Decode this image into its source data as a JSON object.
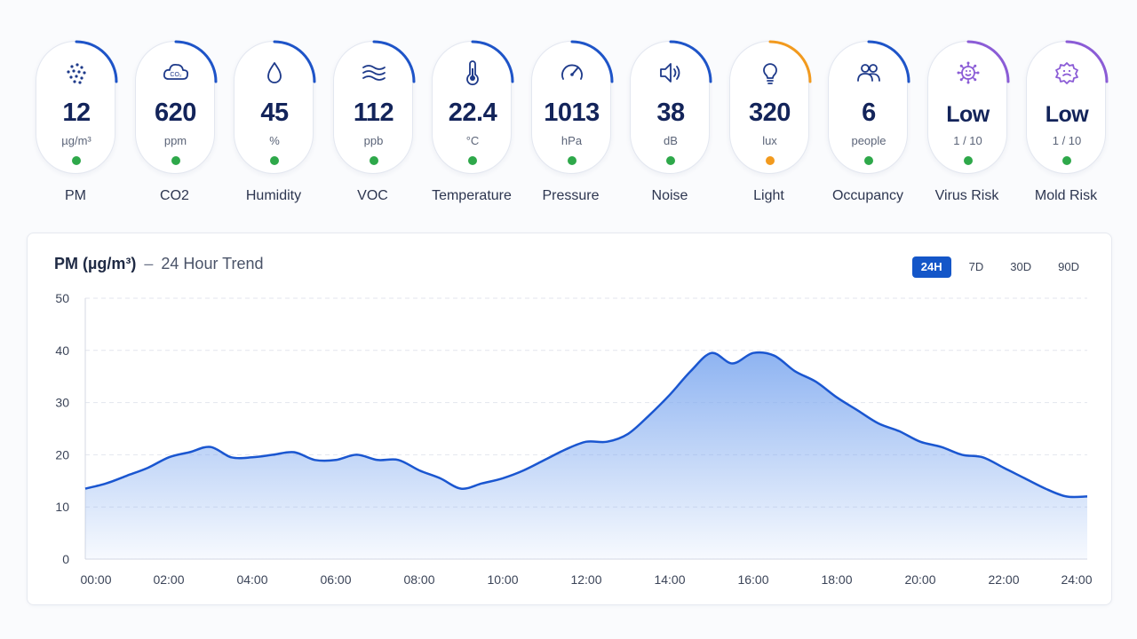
{
  "metrics": [
    {
      "key": "pm",
      "icon": "particles-icon",
      "value": "12",
      "unit": "µg/m³",
      "label": "PM",
      "status_color": "#2ea84a",
      "arc_color": "#1e54c8",
      "arc_fraction": 0.3
    },
    {
      "key": "co2",
      "icon": "co2-cloud-icon",
      "value": "620",
      "unit": "ppm",
      "label": "CO2",
      "status_color": "#2ea84a",
      "arc_color": "#1e54c8",
      "arc_fraction": 0.3
    },
    {
      "key": "humidity",
      "icon": "droplet-icon",
      "value": "45",
      "unit": "%",
      "label": "Humidity",
      "status_color": "#2ea84a",
      "arc_color": "#1e54c8",
      "arc_fraction": 0.25
    },
    {
      "key": "voc",
      "icon": "waves-icon",
      "value": "112",
      "unit": "ppb",
      "label": "VOC",
      "status_color": "#2ea84a",
      "arc_color": "#1e54c8",
      "arc_fraction": 0.28
    },
    {
      "key": "temperature",
      "icon": "thermometer-icon",
      "value": "22.4",
      "unit": "°C",
      "label": "Temperature",
      "status_color": "#2ea84a",
      "arc_color": "#1e54c8",
      "arc_fraction": 0.22
    },
    {
      "key": "pressure",
      "icon": "gauge-icon",
      "value": "1013",
      "unit": "hPa",
      "label": "Pressure",
      "status_color": "#2ea84a",
      "arc_color": "#1e54c8",
      "arc_fraction": 0.22
    },
    {
      "key": "noise",
      "icon": "speaker-icon",
      "value": "38",
      "unit": "dB",
      "label": "Noise",
      "status_color": "#2ea84a",
      "arc_color": "#1e54c8",
      "arc_fraction": 0.22
    },
    {
      "key": "light",
      "icon": "lightbulb-icon",
      "value": "320",
      "unit": "lux",
      "label": "Light",
      "status_color": "#f29a1e",
      "arc_color": "#f29a1e",
      "arc_fraction": 0.3
    },
    {
      "key": "occupancy",
      "icon": "people-icon",
      "value": "6",
      "unit": "people",
      "label": "Occupancy",
      "status_color": "#2ea84a",
      "arc_color": "#1e54c8",
      "arc_fraction": 0.22
    },
    {
      "key": "virus",
      "icon": "virus-icon",
      "value": "Low",
      "unit": "1 / 10",
      "label": "Virus Risk",
      "status_color": "#2ea84a",
      "arc_color": "#8b5cd6",
      "arc_fraction": 0.25
    },
    {
      "key": "mold",
      "icon": "mold-icon",
      "value": "Low",
      "unit": "1 / 10",
      "label": "Mold Risk",
      "status_color": "#2ea84a",
      "arc_color": "#8b5cd6",
      "arc_fraction": 0.25
    }
  ],
  "trend": {
    "title_metric": "PM (µg/m³)",
    "title_separator": "–",
    "title_period": "24 Hour Trend",
    "ranges": [
      "24H",
      "7D",
      "30D",
      "90D"
    ],
    "active_range": "24H",
    "line_color": "#1a56d0",
    "fill_color": "#7aa6ef"
  },
  "chart_data": {
    "type": "area",
    "title": "PM (µg/m³) – 24 Hour Trend",
    "xlabel": "",
    "ylabel": "",
    "ylim": [
      0,
      50
    ],
    "yticks": [
      0,
      10,
      20,
      30,
      40,
      50
    ],
    "xticks": [
      "00:00",
      "02:00",
      "04:00",
      "06:00",
      "08:00",
      "10:00",
      "12:00",
      "14:00",
      "16:00",
      "18:00",
      "20:00",
      "22:00",
      "24:00"
    ],
    "grid": true,
    "x_hours": [
      0,
      0.5,
      1,
      1.5,
      2,
      2.5,
      3,
      3.5,
      4,
      4.5,
      5,
      5.5,
      6,
      6.5,
      7,
      7.5,
      8,
      8.5,
      9,
      9.5,
      10,
      10.5,
      11,
      11.5,
      12,
      12.5,
      13,
      13.5,
      14,
      14.5,
      15,
      15.5,
      16,
      16.5,
      17,
      17.5,
      18,
      18.5,
      19,
      19.5,
      20,
      20.5,
      21,
      21.5,
      22,
      22.5,
      23,
      23.5,
      24
    ],
    "values": [
      13.5,
      14.5,
      16,
      17.5,
      19.5,
      20.5,
      21.5,
      19.5,
      19.5,
      20,
      20.5,
      19,
      19,
      20,
      19,
      19,
      17,
      15.5,
      13.5,
      14.5,
      15.5,
      17,
      19,
      21,
      22.5,
      22.5,
      24,
      27.5,
      31.5,
      36,
      39.5,
      37.5,
      39.5,
      39,
      36,
      34,
      31,
      28.5,
      26,
      24.5,
      22.5,
      21.5,
      20,
      19.5,
      17.5,
      15.5,
      13.5,
      12,
      12
    ]
  }
}
